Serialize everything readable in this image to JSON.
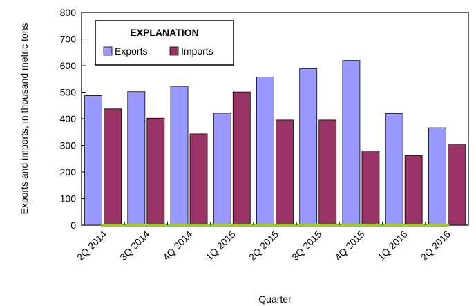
{
  "chart_data": {
    "type": "bar",
    "categories": [
      "2Q 2014",
      "3Q 2014",
      "4Q 2014",
      "1Q 2015",
      "2Q 2015",
      "3Q 2015",
      "4Q 2015",
      "1Q 2016",
      "2Q 2016"
    ],
    "series": [
      {
        "name": "Exports",
        "values": [
          487,
          502,
          522,
          421,
          557,
          588,
          619,
          420,
          366
        ],
        "color": "#9999ff"
      },
      {
        "name": "Imports",
        "values": [
          437,
          402,
          343,
          501,
          395,
          395,
          279,
          262,
          305
        ],
        "color": "#993366"
      }
    ],
    "title": "",
    "xlabel": "Quarter",
    "ylabel": "Exports and imports, in thousand metric tons",
    "ylim": [
      0,
      800
    ],
    "yticks": [
      0,
      100,
      200,
      300,
      400,
      500,
      600,
      700,
      800
    ],
    "legend": {
      "title": "EXPLANATION",
      "placement": "top-left"
    },
    "baseline_color": "#99cc33",
    "grid": false
  }
}
